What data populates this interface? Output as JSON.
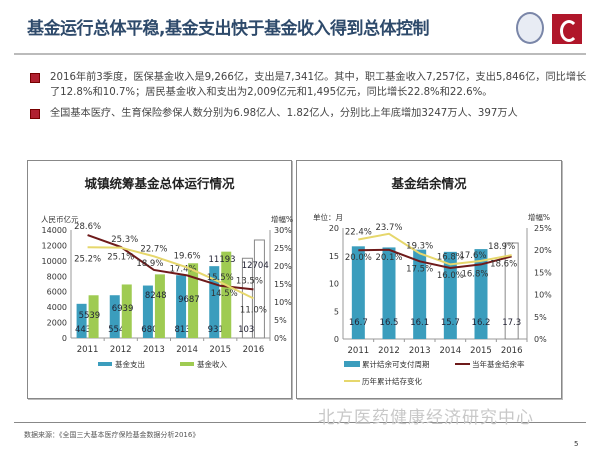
{
  "header": {
    "title": "基金运行总体平稳,基金支出快于基金收入得到总体控制"
  },
  "bullets": [
    {
      "text": "2016年前3季度，医保基金收入是9,266亿，支出是7,341亿。其中，职工基金收入7,257亿，支出5,846亿，同比增长了12.8%和10.7%；居民基金收入和支出为2,009亿元和1,495亿元，同比增长22.8%和22.6%。"
    },
    {
      "text": "全国基本医疗、生育保险参保人数分别为6.98亿人、1.82亿人，分别比上年底增加3247万人、397万人"
    }
  ],
  "colors": {
    "expense": "#3b9dbd",
    "income": "#9fcb52",
    "dark_line": "#6e1a1a",
    "yellow_line": "#e6d76c",
    "bullet": "#b02030",
    "title": "#2e4a6b"
  },
  "chart_data": [
    {
      "type": "bar+line",
      "title": "城镇统筹基金总体运行情况",
      "ylabel": "人民币亿元",
      "y2label": "增幅%",
      "ylim": [
        0,
        14000
      ],
      "y2lim": [
        0,
        30
      ],
      "yticks": [
        0,
        2000,
        4000,
        6000,
        8000,
        10000,
        12000,
        14000
      ],
      "y2ticks": [
        "0%",
        "5%",
        "10%",
        "15%",
        "20%",
        "25%",
        "30%"
      ],
      "categories": [
        "2011",
        "2012",
        "2013",
        "2014",
        "2015",
        "2016"
      ],
      "projected_category": "2016",
      "bars": [
        {
          "name": "基金支出",
          "values": [
            4431,
            5544,
            6801,
            8134,
            9312,
            10336
          ]
        },
        {
          "name": "基金收入",
          "values": [
            5539,
            6939,
            8248,
            9687,
            11193,
            12704
          ]
        }
      ],
      "lines": [
        {
          "values": [
            28.6,
            25.3,
            18.9,
            17.4,
            14.5,
            13.5
          ],
          "labels": [
            "28.6%",
            "25.3%",
            "18.9%",
            "17.4%",
            "14.5%",
            "13.5%"
          ]
        },
        {
          "values": [
            25.2,
            25.1,
            22.7,
            19.6,
            15.5,
            11.0
          ],
          "labels": [
            "25.2%",
            "25.1%",
            "22.7%",
            "19.6%",
            "15.5%",
            "11.0%"
          ]
        }
      ],
      "legend": "bottom"
    },
    {
      "type": "bar+line",
      "title": "基金结余情况",
      "ylabel": "单位：月",
      "y2label": "增幅%",
      "ylim": [
        0,
        20
      ],
      "y2lim": [
        0,
        25
      ],
      "yticks": [
        0,
        5,
        10,
        15,
        20
      ],
      "y2ticks": [
        "0%",
        "5%",
        "10%",
        "15%",
        "20%",
        "25%"
      ],
      "categories": [
        "2011",
        "2012",
        "2013",
        "2014",
        "2015",
        "2016"
      ],
      "projected_category": "2016",
      "bars": [
        {
          "name": "累计结余可支付周期",
          "values": [
            16.7,
            16.5,
            16.1,
            15.7,
            16.2,
            17.3
          ]
        }
      ],
      "lines": [
        {
          "name": "当年基金结余率",
          "values": [
            20.0,
            20.1,
            17.5,
            16.0,
            16.8,
            18.6
          ],
          "labels": [
            "20.0%",
            "20.1%",
            "17.5%",
            "16.0%",
            "16.8%",
            "18.6%"
          ]
        },
        {
          "name": "历年累计结存变化",
          "values": [
            22.4,
            23.7,
            19.3,
            16.8,
            17.6,
            18.9
          ],
          "labels": [
            "22.4%",
            "23.7%",
            "19.3%",
            "16.8%",
            "17.6%",
            "18.9%"
          ]
        }
      ],
      "legend": "bottom"
    }
  ],
  "footer": {
    "source": "数据来源：《全国三大基本医疗保险基金数据分析2016》",
    "watermark": "北方医药健康经济研究中心",
    "page": "5"
  }
}
